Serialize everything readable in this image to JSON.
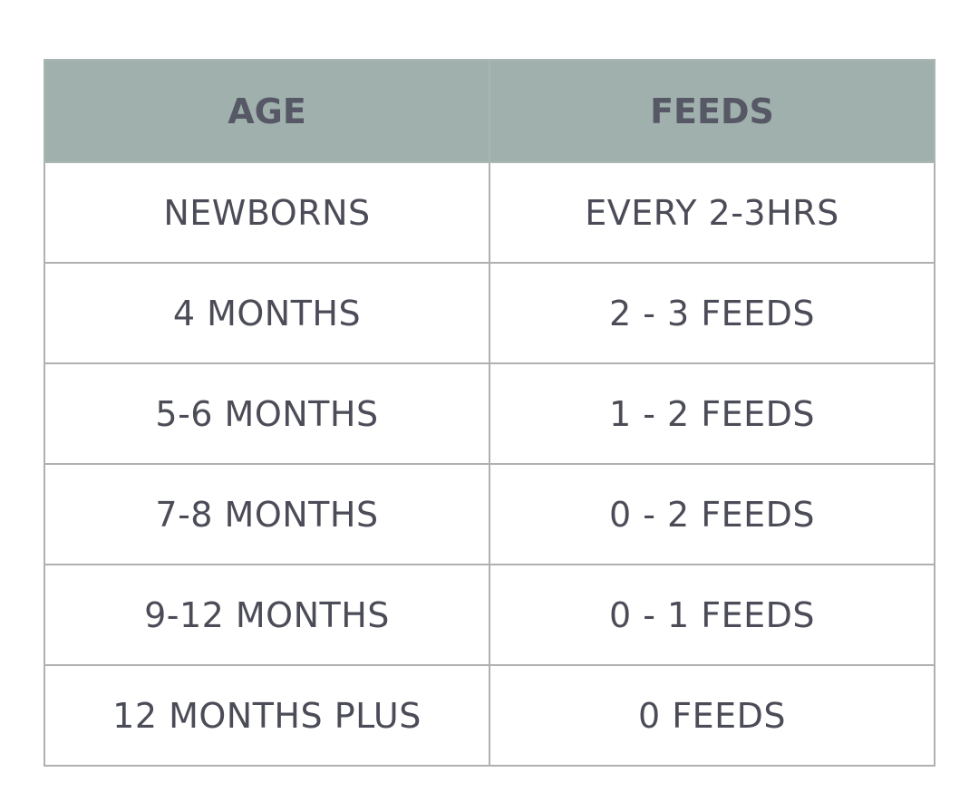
{
  "table": {
    "header": [
      "AGE",
      "FEEDS"
    ],
    "rows": [
      [
        "NEWBORNS",
        "EVERY 2-3HRS"
      ],
      [
        "4 MONTHS",
        "2 - 3 FEEDS"
      ],
      [
        "5-6 MONTHS",
        "1 - 2 FEEDS"
      ],
      [
        "7-8 MONTHS",
        "0 - 2 FEEDS"
      ],
      [
        "9-12 MONTHS",
        "0 - 1 FEEDS"
      ],
      [
        "12 MONTHS PLUS",
        "0 FEEDS"
      ]
    ]
  }
}
